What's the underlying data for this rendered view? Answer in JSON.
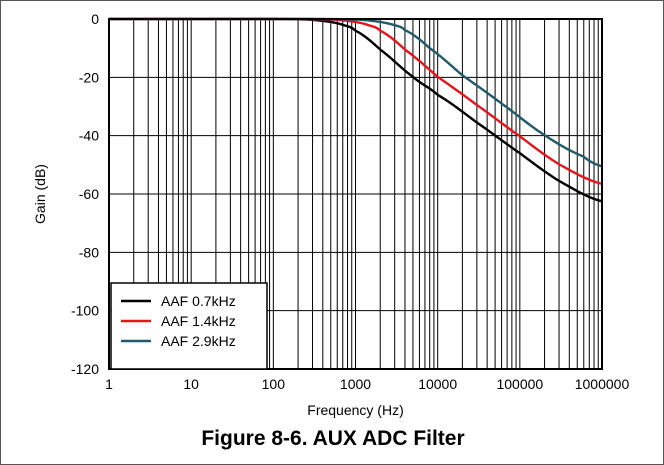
{
  "caption": "Figure 8-6. AUX ADC Filter",
  "chart_data": {
    "type": "line",
    "title": "",
    "xlabel": "Frequency (Hz)",
    "ylabel": "Gain (dB)",
    "xscale": "log",
    "xlim": [
      1,
      1000000
    ],
    "ylim": [
      -120,
      0
    ],
    "xticks": [
      1,
      10,
      100,
      1000,
      10000,
      100000,
      1000000
    ],
    "xtick_labels": [
      "1",
      "10",
      "100",
      "1000",
      "10000",
      "100000",
      "1000000"
    ],
    "yticks": [
      0,
      -20,
      -40,
      -60,
      -80,
      -100,
      -120
    ],
    "ytick_labels": [
      "0",
      "-20",
      "-40",
      "-60",
      "-80",
      "-100",
      "-120"
    ],
    "grid": true,
    "legend_position": "bottom-left",
    "series": [
      {
        "name": "AAF 0.7kHz",
        "color": "#000000",
        "x": [
          1,
          100,
          200,
          300,
          500,
          700,
          1000,
          2000,
          5000,
          10000,
          30000,
          100000,
          300000,
          1000000
        ],
        "y": [
          0,
          0,
          -0.1,
          -0.3,
          -1,
          -2,
          -4,
          -10.5,
          -19.8,
          -26,
          -35.5,
          -46,
          -55.5,
          -62.5
        ]
      },
      {
        "name": "AAF 1.4kHz",
        "color": "#e8141b",
        "x": [
          1,
          200,
          400,
          600,
          1000,
          1400,
          2000,
          4000,
          10000,
          30000,
          100000,
          300000,
          1000000
        ],
        "y": [
          0,
          0,
          -0.1,
          -0.3,
          -1,
          -2,
          -4,
          -10.5,
          -19.8,
          -29.5,
          -40.2,
          -49.8,
          -56.5
        ]
      },
      {
        "name": "AAF 2.9kHz",
        "color": "#215a6b",
        "x": [
          1,
          400,
          800,
          1200,
          2000,
          2900,
          4000,
          8000,
          20000,
          60000,
          200000,
          600000,
          1000000
        ],
        "y": [
          0,
          0,
          -0.1,
          -0.3,
          -1,
          -2,
          -3.8,
          -10,
          -19.3,
          -29,
          -39.8,
          -47.2,
          -50.5
        ]
      }
    ]
  }
}
